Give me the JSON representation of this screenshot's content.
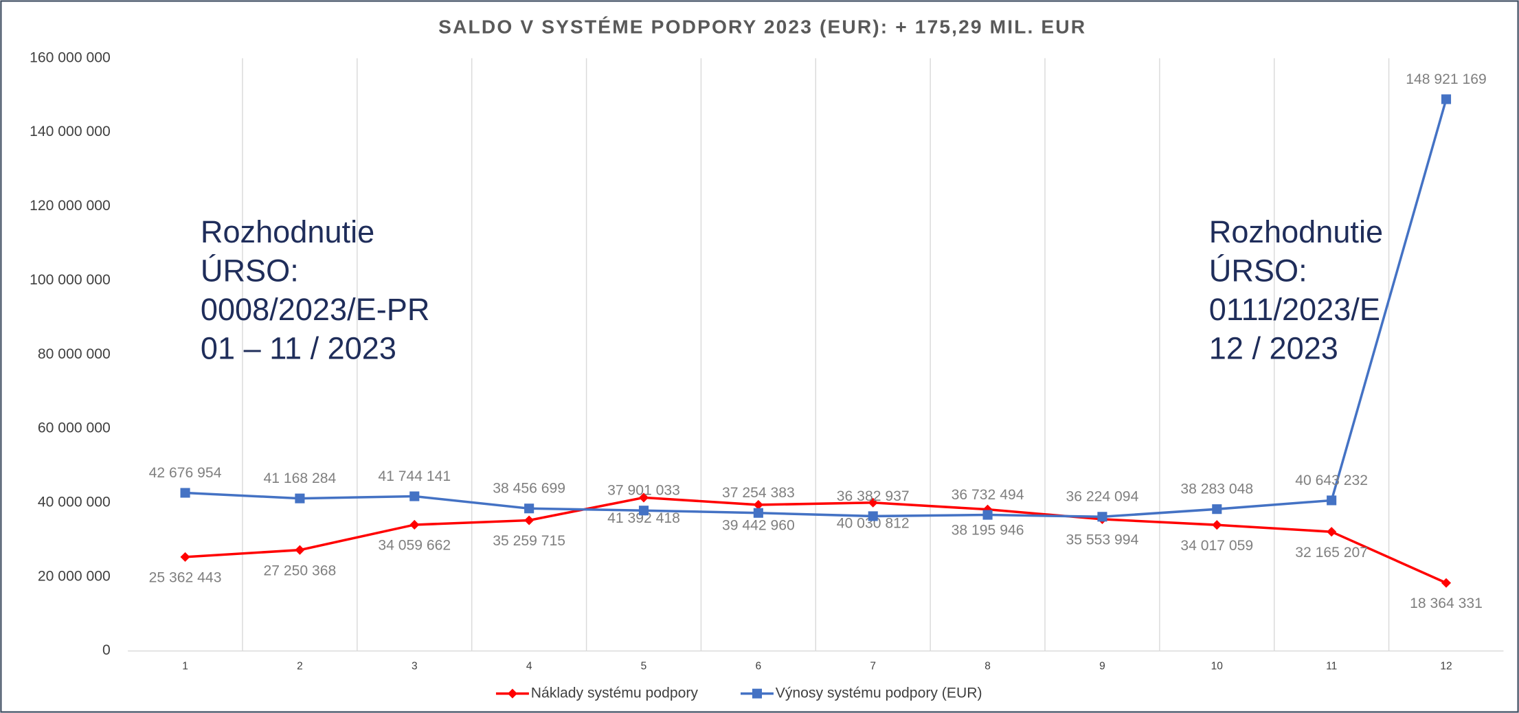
{
  "chart_data": {
    "type": "line",
    "title": "SALDO V SYSTÉME PODPORY 2023 (EUR): + 175,29 MIL. EUR",
    "categories": [
      1,
      2,
      3,
      4,
      5,
      6,
      7,
      8,
      9,
      10,
      11,
      12
    ],
    "series": [
      {
        "name": "Náklady systému podpory",
        "color": "#ff0000",
        "marker": "diamond",
        "values": [
          25362443,
          27250368,
          34059662,
          35259715,
          41392418,
          39442960,
          40030812,
          38195946,
          35553994,
          34017059,
          32165207,
          18364331
        ],
        "value_labels": [
          "25 362 443",
          "27 250 368",
          "34 059 662",
          "35 259 715",
          "41 392 418",
          "39 442 960",
          "40 030 812",
          "38 195 946",
          "35 553 994",
          "34 017 059",
          "32 165 207",
          "18 364 331"
        ]
      },
      {
        "name": "Výnosy systému podpory (EUR)",
        "color": "#4472c4",
        "marker": "square",
        "values": [
          42676954,
          41168284,
          41744141,
          38456699,
          37901033,
          37254383,
          36382937,
          36732494,
          36224094,
          38283048,
          40643232,
          148921169
        ],
        "value_labels": [
          "42 676 954",
          "41 168 284",
          "41 744 141",
          "38 456 699",
          "37 901 033",
          "37 254 383",
          "36 382 937",
          "36 732 494",
          "36 224 094",
          "38 283 048",
          "40 643 232",
          "148 921 169"
        ]
      }
    ],
    "ylim": [
      0,
      160000000
    ],
    "yticks": [
      0,
      {
        "value": 20000000,
        "label": "20 000 000"
      },
      {
        "value": 40000000,
        "label": "40 000 000"
      },
      {
        "value": 60000000,
        "label": "60 000 000"
      },
      {
        "value": 80000000,
        "label": "80 000 000"
      },
      {
        "value": 100000000,
        "label": "100 000 000"
      },
      {
        "value": 120000000,
        "label": "120 000 000"
      },
      {
        "value": 140000000,
        "label": "140 000 000"
      },
      {
        "value": 160000000,
        "label": "160 000 000"
      }
    ],
    "legend": "bottom",
    "annotations": [
      {
        "lines": [
          "Rozhodnutie",
          "ÚRSO:",
          "0008/2023/E-PR",
          "01 – 11 / 2023"
        ]
      },
      {
        "lines": [
          "Rozhodnutie",
          "ÚRSO:",
          "0111/2023/E",
          "12 / 2023"
        ]
      }
    ]
  }
}
